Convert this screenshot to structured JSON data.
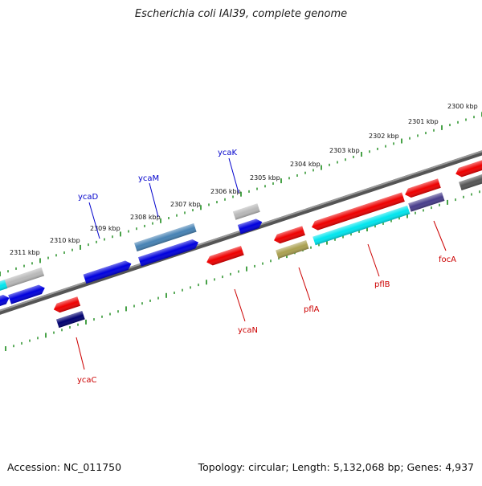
{
  "title": "Escherichia coli IAI39, complete genome",
  "footer": {
    "accession": "Accession: NC_011750",
    "topology": "Topology: circular; Length: 5,132,068 bp; Genes: 4,937"
  },
  "scale": {
    "ticks": [
      "2311 kbp",
      "2310 kbp",
      "2309 kbp",
      "2308 kbp",
      "2307 kbp",
      "2306 kbp",
      "2305 kbp",
      "2304 kbp",
      "2303 kbp",
      "2302 kbp",
      "2301 kbp",
      "2300 kbp"
    ]
  },
  "gene_labels": [
    {
      "text": "ycaD",
      "strand": "forward",
      "color": "#0000cc"
    },
    {
      "text": "ycaM",
      "strand": "forward",
      "color": "#0000cc"
    },
    {
      "text": "ycaK",
      "strand": "forward",
      "color": "#0000cc"
    },
    {
      "text": "ycaC",
      "strand": "reverse",
      "color": "#cc0000"
    },
    {
      "text": "ycaN",
      "strand": "reverse",
      "color": "#cc0000"
    },
    {
      "text": "pflA",
      "strand": "reverse",
      "color": "#cc0000"
    },
    {
      "text": "pflB",
      "strand": "reverse",
      "color": "#cc0000"
    },
    {
      "text": "focA",
      "strand": "reverse",
      "color": "#cc0000"
    }
  ],
  "colors": {
    "backbone": "#808080",
    "tick": "#1a8a1a",
    "blue": "#0000dd",
    "red": "#ee0000",
    "cyan": "#00e5ee",
    "gray": "#b8b8b8",
    "steel": "#4682b4",
    "navy": "#000070",
    "purple": "#483d8b",
    "olive": "#aaa050",
    "dark": "#555555"
  }
}
